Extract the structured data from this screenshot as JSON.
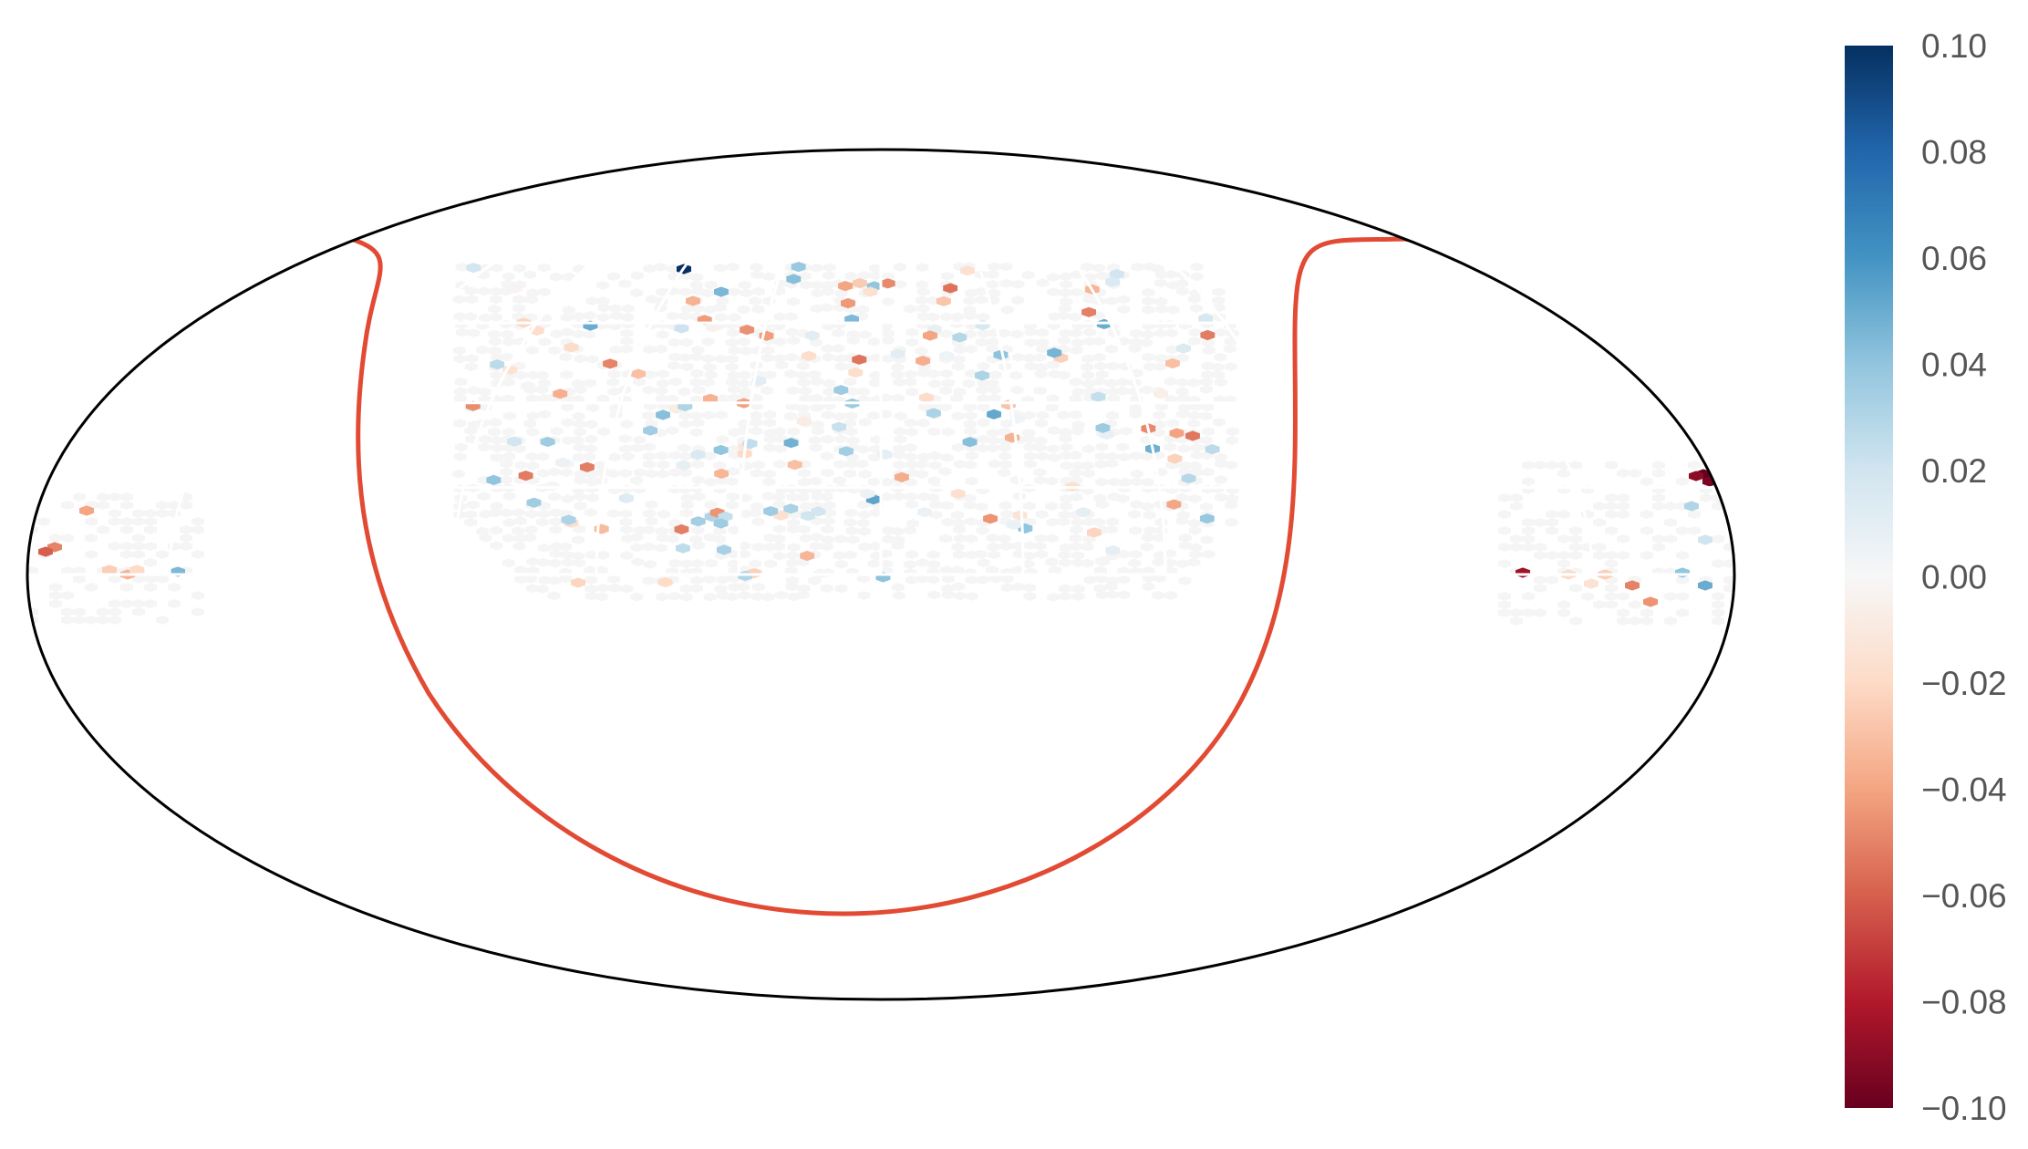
{
  "chart_data": {
    "type": "heatmap",
    "projection": "mollweide",
    "title": "",
    "colormap": "RdBu",
    "colorbar": {
      "range": [
        -0.1,
        0.1
      ],
      "ticks": [
        {
          "value": 0.1,
          "label": "0.10"
        },
        {
          "value": 0.08,
          "label": "0.08"
        },
        {
          "value": 0.06,
          "label": "0.06"
        },
        {
          "value": 0.04,
          "label": "0.04"
        },
        {
          "value": 0.02,
          "label": "0.02"
        },
        {
          "value": 0.0,
          "label": "0.00"
        },
        {
          "value": -0.02,
          "label": "−0.02"
        },
        {
          "value": -0.04,
          "label": "−0.04"
        },
        {
          "value": -0.06,
          "label": "−0.06"
        },
        {
          "value": -0.08,
          "label": "−0.08"
        },
        {
          "value": -0.1,
          "label": "−0.10"
        }
      ]
    },
    "boundary_line_color": "#e24a33",
    "background_cell_color": "#f4f5f4"
  }
}
